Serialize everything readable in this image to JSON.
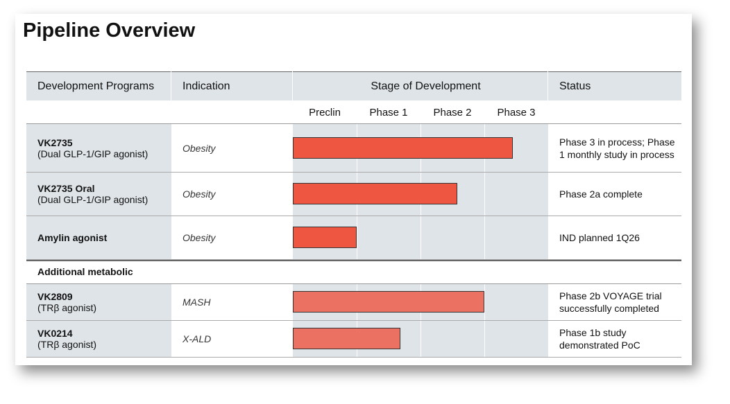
{
  "title": "Pipeline Overview",
  "headers": [
    "Development Programs",
    "Indication",
    "Stage of Development",
    "Status"
  ],
  "stages": [
    "Preclin",
    "Phase 1",
    "Phase 2",
    "Phase 3"
  ],
  "groups": [
    {
      "rows": [
        {
          "program": "VK2735",
          "detail": "(Dual GLP-1/GIP agonist)",
          "indication": "Obesity",
          "progress": 3.45,
          "color": "#ee5642",
          "status": "Phase 3 in process; Phase 1 monthly study in process"
        },
        {
          "program": "VK2735 Oral",
          "detail": "(Dual GLP-1/GIP agonist)",
          "indication": "Obesity",
          "progress": 2.58,
          "color": "#ee5642",
          "status": "Phase 2a complete"
        },
        {
          "program": "Amylin agonist",
          "indication": "Obesity",
          "progress": 1.0,
          "color": "#ee5642",
          "status": "IND planned 1Q26"
        }
      ]
    },
    {
      "title": "Additional metabolic",
      "rows": [
        {
          "program": "VK2809",
          "detail": "(TRβ agonist)",
          "indication": "MASH",
          "progress": 3.0,
          "color": "#eb7262",
          "status": "Phase 2b VOYAGE trial successfully completed"
        },
        {
          "program": "VK0214",
          "detail": "(TRβ agonist)",
          "indication": "X-ALD",
          "progress": 1.68,
          "color": "#eb7262",
          "status": "Phase 1b study demonstrated PoC"
        }
      ]
    }
  ]
}
